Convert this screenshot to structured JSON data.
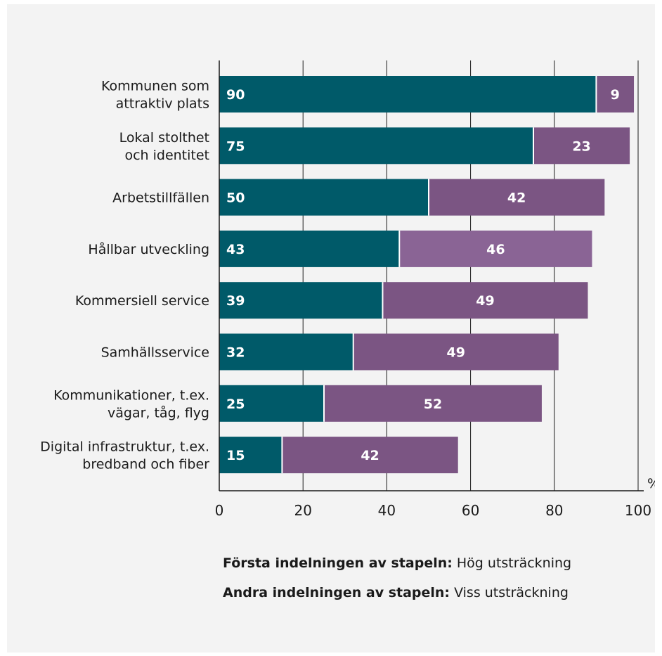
{
  "chart_data": {
    "type": "bar",
    "orientation": "horizontal",
    "stacked": true,
    "categories": [
      [
        "Kommunen som",
        "attraktiv plats"
      ],
      [
        "Lokal stolthet",
        "och identitet"
      ],
      [
        "Arbetstillfällen"
      ],
      [
        "Hållbar utveckling"
      ],
      [
        "Kommersiell service"
      ],
      [
        "Samhällsservice"
      ],
      [
        "Kommunikationer, t.ex.",
        "vägar, tåg, flyg"
      ],
      [
        "Digital infrastruktur, t.ex.",
        "bredband och fiber"
      ]
    ],
    "series": [
      {
        "values": [
          90,
          75,
          50,
          43,
          39,
          32,
          25,
          15
        ],
        "color": "#005a69"
      },
      {
        "values": [
          9,
          23,
          42,
          46,
          49,
          49,
          52,
          42
        ],
        "color": "#7b5583"
      }
    ],
    "highlight": {
      "category_index": 3,
      "series_index": 1,
      "color": "#8a6495"
    },
    "xlim": [
      0,
      100
    ],
    "xticks": [
      0,
      20,
      40,
      60,
      80,
      100
    ],
    "unit_label": "%",
    "grid": "vertical"
  },
  "legend": [
    {
      "bold": "Första indelningen av stapeln:",
      "text": " Hög utsträckning"
    },
    {
      "bold": "Andra indelningen av stapeln:",
      "text": " Viss utsträckning"
    }
  ]
}
